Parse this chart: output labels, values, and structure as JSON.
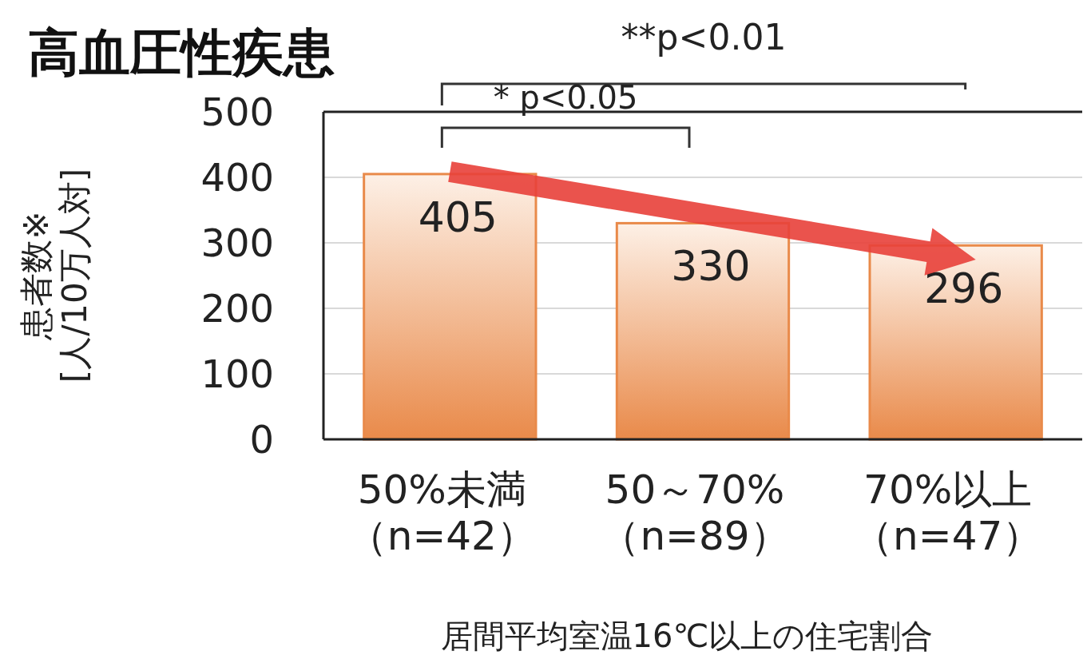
{
  "chart_data": {
    "type": "bar",
    "title": "高血圧性疾患",
    "ylabel": "患者数※\n[人/10万人対]",
    "xlabel": "居間平均室温16℃以上の住宅割合",
    "categories": [
      "50%未満（n=42）",
      "50～70%（n=89）",
      "70%以上（n=47）"
    ],
    "values": [
      405,
      330,
      296
    ],
    "color": "#e98a4a",
    "ylim": [
      0,
      500
    ],
    "yticks": [
      0,
      100,
      200,
      300,
      400,
      500
    ],
    "grid": "y",
    "data_labels": true,
    "annotations": [
      "**p<0.01",
      "* p<0.05"
    ]
  }
}
